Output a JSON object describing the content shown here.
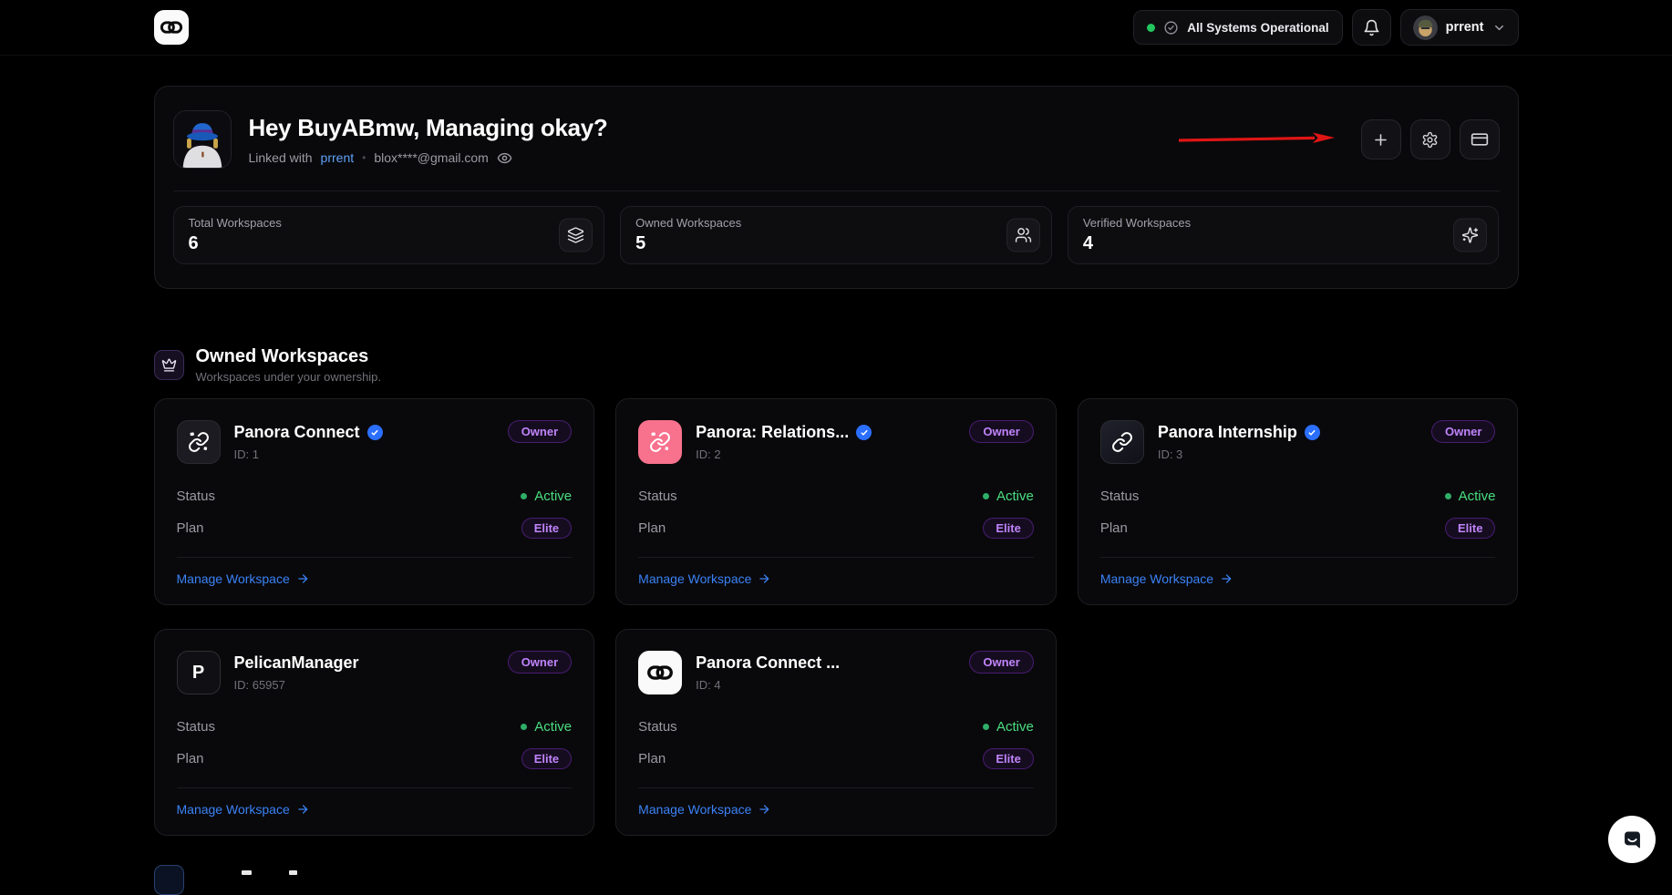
{
  "navbar": {
    "status": {
      "label": "All Systems Operational"
    },
    "user": {
      "name": "prrent"
    }
  },
  "hero": {
    "greeting": "Hey BuyABmw, Managing okay?",
    "linked": {
      "prefix": "Linked with",
      "account": "prrent",
      "separator": "•",
      "email": "blox****@gmail.com"
    },
    "stats": [
      {
        "label": "Total Workspaces",
        "value": "6",
        "icon": "layers-icon"
      },
      {
        "label": "Owned Workspaces",
        "value": "5",
        "icon": "users-icon"
      },
      {
        "label": "Verified Workspaces",
        "value": "4",
        "icon": "sparkles-icon"
      }
    ]
  },
  "owned_section": {
    "title": "Owned Workspaces",
    "subtitle": "Workspaces under your ownership.",
    "card_labels": {
      "owner_badge": "Owner",
      "status": "Status",
      "plan": "Plan",
      "manage": "Manage Workspace"
    },
    "workspaces": [
      {
        "name": "Panora Connect",
        "id_label": "ID: 1",
        "verified": true,
        "status": "Active",
        "plan": "Elite",
        "icon": "link-dark"
      },
      {
        "name": "Panora: Relations...",
        "id_label": "ID: 2",
        "verified": true,
        "status": "Active",
        "plan": "Elite",
        "icon": "link-pink"
      },
      {
        "name": "Panora Internship",
        "id_label": "ID: 3",
        "verified": true,
        "status": "Active",
        "plan": "Elite",
        "icon": "chain-dark"
      },
      {
        "name": "PelicanManager",
        "id_label": "ID: 65957",
        "verified": false,
        "status": "Active",
        "plan": "Elite",
        "icon": "letter-p",
        "letter": "P"
      },
      {
        "name": "Panora Connect ...",
        "id_label": "ID: 4",
        "verified": false,
        "status": "Active",
        "plan": "Elite",
        "icon": "rings-white"
      }
    ]
  },
  "colors": {
    "accent_purple": "#c084fc",
    "active_green": "#4ade80",
    "link_blue": "#3b82f6",
    "verified_blue": "#2b6fff",
    "status_green": "#22c55e",
    "annotation_red": "#e01515"
  }
}
